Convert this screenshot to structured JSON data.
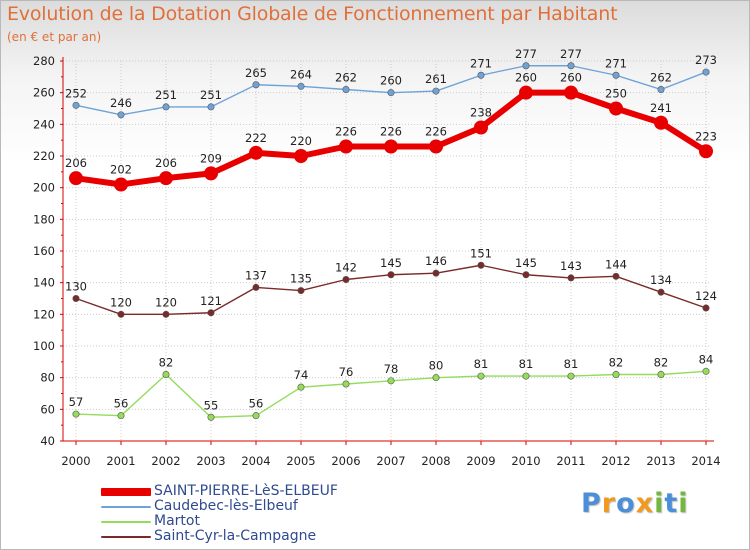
{
  "title": "Evolution de la Dotation Globale de Fonctionnement par Habitant",
  "subtitle": "(en € et par an)",
  "colors": {
    "title": "#e0703a",
    "axis": "#d40000",
    "grid": "#cccccc",
    "legend_text": "#2f4a8f"
  },
  "logo": {
    "letters": [
      "P",
      "r",
      "o",
      "x",
      "i",
      "t",
      "i"
    ],
    "colors": [
      "#4a8fd8",
      "#f29a1f",
      "#4a8fd8",
      "#f29a1f",
      "#72b83e",
      "#4a8fd8",
      "#72b83e"
    ]
  },
  "chart_data": {
    "type": "line",
    "title": "Evolution de la Dotation Globale de Fonctionnement par Habitant",
    "subtitle": "(en € et par an)",
    "xlabel": "",
    "ylabel": "",
    "ylim": [
      40,
      280
    ],
    "yticks": [
      40,
      60,
      80,
      100,
      120,
      140,
      160,
      180,
      200,
      220,
      240,
      260,
      280
    ],
    "grid": true,
    "legend_position": "bottom-left",
    "categories": [
      "2000",
      "2001",
      "2002",
      "2003",
      "2004",
      "2005",
      "2006",
      "2007",
      "2008",
      "2009",
      "2010",
      "2011",
      "2012",
      "2013",
      "2014"
    ],
    "series": [
      {
        "name": "SAINT-PIERRE-LèS-ELBEUF",
        "color": "#e80000",
        "emphasis": true,
        "values": [
          206,
          202,
          206,
          209,
          222,
          220,
          226,
          226,
          226,
          238,
          260,
          260,
          250,
          241,
          223
        ]
      },
      {
        "name": "Caudebec-lès-Elbeuf",
        "color": "#6fa3d8",
        "emphasis": false,
        "values": [
          252,
          246,
          251,
          251,
          265,
          264,
          262,
          260,
          261,
          271,
          277,
          277,
          271,
          262,
          273
        ]
      },
      {
        "name": "Martot",
        "color": "#94dc5a",
        "emphasis": false,
        "values": [
          57,
          56,
          82,
          55,
          56,
          74,
          76,
          78,
          80,
          81,
          81,
          81,
          82,
          82,
          84
        ]
      },
      {
        "name": "Saint-Cyr-la-Campagne",
        "color": "#7a2a2a",
        "emphasis": false,
        "values": [
          130,
          120,
          120,
          121,
          137,
          135,
          142,
          145,
          146,
          151,
          145,
          143,
          144,
          134,
          124
        ]
      }
    ]
  }
}
